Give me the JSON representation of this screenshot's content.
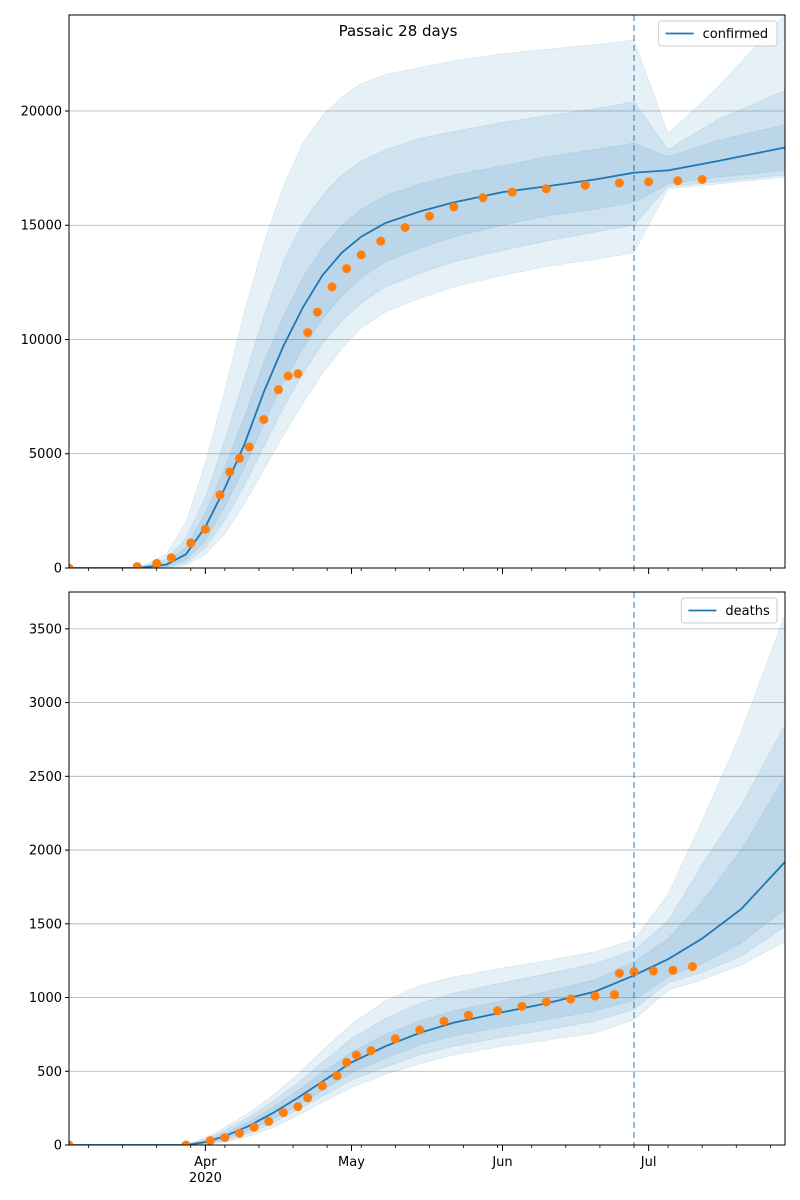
{
  "figure": {
    "title": "Passaic 28 days"
  },
  "colors": {
    "model": "#1f77b4",
    "observed": "#ff7f0e",
    "grid": "#b0b0b0",
    "band": "#1f77b4",
    "forecast_line": "#1f77b4"
  },
  "x_axis": {
    "range": [
      "2020-03-04",
      "2020-07-29"
    ],
    "major_ticks": [
      {
        "date": "2020-04-01",
        "label": "Apr",
        "sublabel": "2020"
      },
      {
        "date": "2020-05-01",
        "label": "May",
        "sublabel": ""
      },
      {
        "date": "2020-06-01",
        "label": "Jun",
        "sublabel": ""
      },
      {
        "date": "2020-07-01",
        "label": "Jul",
        "sublabel": ""
      }
    ],
    "minor_ticks": [
      "2020-03-08",
      "2020-03-15",
      "2020-03-22",
      "2020-03-29",
      "2020-04-05",
      "2020-04-12",
      "2020-04-19",
      "2020-04-26",
      "2020-05-03",
      "2020-05-10",
      "2020-05-17",
      "2020-05-24",
      "2020-05-31",
      "2020-06-07",
      "2020-06-14",
      "2020-06-21",
      "2020-06-28",
      "2020-07-05",
      "2020-07-12",
      "2020-07-19",
      "2020-07-26"
    ],
    "forecast_start": "2020-06-28"
  },
  "chart_data": [
    {
      "type": "line",
      "title": "Passaic 28 days",
      "legend": {
        "entries": [
          "confirmed"
        ],
        "placement": "top-right"
      },
      "grid": "y",
      "ylim": [
        0,
        24200
      ],
      "yticks": [
        0,
        5000,
        10000,
        15000,
        20000
      ],
      "series": [
        {
          "name": "confirmed",
          "kind": "model",
          "x": [
            "2020-03-04",
            "2020-03-18",
            "2020-03-24",
            "2020-03-28",
            "2020-04-01",
            "2020-04-05",
            "2020-04-09",
            "2020-04-13",
            "2020-04-17",
            "2020-04-21",
            "2020-04-25",
            "2020-04-29",
            "2020-05-03",
            "2020-05-08",
            "2020-05-15",
            "2020-05-22",
            "2020-06-01",
            "2020-06-10",
            "2020-06-20",
            "2020-06-28",
            "2020-07-05",
            "2020-07-15",
            "2020-07-29"
          ],
          "y": [
            0,
            0,
            150,
            600,
            1800,
            3500,
            5400,
            7700,
            9700,
            11400,
            12800,
            13800,
            14500,
            15100,
            15600,
            16000,
            16450,
            16700,
            17000,
            17300,
            17400,
            17800,
            18400
          ]
        },
        {
          "name": "",
          "kind": "observed",
          "x": [
            "2020-03-04",
            "2020-03-18",
            "2020-03-22",
            "2020-03-25",
            "2020-03-29",
            "2020-04-01",
            "2020-04-04",
            "2020-04-06",
            "2020-04-08",
            "2020-04-10",
            "2020-04-13",
            "2020-04-16",
            "2020-04-18",
            "2020-04-20",
            "2020-04-22",
            "2020-04-24",
            "2020-04-27",
            "2020-04-30",
            "2020-05-03",
            "2020-05-07",
            "2020-05-12",
            "2020-05-17",
            "2020-05-22",
            "2020-05-28",
            "2020-06-03",
            "2020-06-10",
            "2020-06-18",
            "2020-06-25",
            "2020-07-01",
            "2020-07-07",
            "2020-07-12"
          ],
          "y": [
            0,
            60,
            200,
            450,
            1100,
            1700,
            3200,
            4200,
            4800,
            5300,
            6500,
            7800,
            8400,
            8500,
            10300,
            11200,
            12300,
            13100,
            13700,
            14300,
            14900,
            15400,
            15800,
            16200,
            16450,
            16600,
            16750,
            16850,
            16900,
            16950,
            17000
          ]
        }
      ],
      "uncertainty_bands": [
        {
          "level": "inner",
          "lower": [
            0,
            0,
            60,
            350,
            1200,
            2700,
            4400,
            6300,
            8100,
            9600,
            10900,
            11900,
            12700,
            13400,
            14000,
            14500,
            15000,
            15400,
            15700,
            16000,
            16800,
            17100,
            17400
          ],
          "upper": [
            0,
            0,
            260,
            900,
            2400,
            4400,
            6600,
            9000,
            11000,
            12700,
            14000,
            15000,
            15700,
            16300,
            16800,
            17200,
            17600,
            18000,
            18300,
            18600,
            18000,
            18700,
            19400
          ]
        },
        {
          "level": "middle",
          "lower": [
            0,
            0,
            30,
            220,
            900,
            2100,
            3600,
            5300,
            7000,
            8500,
            9800,
            10800,
            11600,
            12300,
            12900,
            13400,
            13900,
            14300,
            14700,
            15000,
            16700,
            16900,
            17200
          ],
          "upper": [
            0,
            0,
            400,
            1300,
            3100,
            5600,
            8300,
            11000,
            13400,
            15100,
            16300,
            17200,
            17800,
            18300,
            18800,
            19100,
            19500,
            19800,
            20100,
            20400,
            18300,
            19600,
            20900
          ]
        },
        {
          "level": "outer",
          "lower": [
            0,
            0,
            10,
            120,
            600,
            1500,
            2800,
            4300,
            5800,
            7200,
            8500,
            9600,
            10500,
            11200,
            11800,
            12300,
            12800,
            13200,
            13500,
            13800,
            16600,
            16800,
            17100
          ],
          "upper": [
            0,
            0,
            600,
            2000,
            4600,
            7800,
            11200,
            14200,
            16700,
            18600,
            19800,
            20600,
            21200,
            21600,
            21900,
            22200,
            22500,
            22700,
            22900,
            23100,
            19000,
            21000,
            24200
          ]
        }
      ]
    },
    {
      "type": "line",
      "title": "",
      "legend": {
        "entries": [
          "deaths"
        ],
        "placement": "top-right"
      },
      "grid": "y",
      "ylim": [
        0,
        3750
      ],
      "yticks": [
        0,
        500,
        1000,
        1500,
        2000,
        2500,
        3000,
        3500
      ],
      "series": [
        {
          "name": "deaths",
          "kind": "model",
          "x": [
            "2020-03-04",
            "2020-03-28",
            "2020-04-01",
            "2020-04-05",
            "2020-04-10",
            "2020-04-15",
            "2020-04-20",
            "2020-04-25",
            "2020-05-01",
            "2020-05-08",
            "2020-05-15",
            "2020-05-22",
            "2020-06-01",
            "2020-06-10",
            "2020-06-20",
            "2020-06-28",
            "2020-07-05",
            "2020-07-12",
            "2020-07-20",
            "2020-07-29"
          ],
          "y": [
            0,
            0,
            20,
            60,
            130,
            220,
            320,
            430,
            560,
            670,
            760,
            830,
            900,
            960,
            1040,
            1150,
            1260,
            1400,
            1600,
            1920
          ]
        },
        {
          "name": "",
          "kind": "observed",
          "x": [
            "2020-03-04",
            "2020-03-28",
            "2020-04-02",
            "2020-04-05",
            "2020-04-08",
            "2020-04-11",
            "2020-04-14",
            "2020-04-17",
            "2020-04-20",
            "2020-04-22",
            "2020-04-25",
            "2020-04-28",
            "2020-04-30",
            "2020-05-02",
            "2020-05-05",
            "2020-05-10",
            "2020-05-15",
            "2020-05-20",
            "2020-05-25",
            "2020-05-31",
            "2020-06-05",
            "2020-06-10",
            "2020-06-15",
            "2020-06-20",
            "2020-06-24",
            "2020-06-25",
            "2020-06-28",
            "2020-07-02",
            "2020-07-06",
            "2020-07-10"
          ],
          "y": [
            0,
            0,
            30,
            50,
            80,
            120,
            160,
            220,
            260,
            320,
            400,
            470,
            560,
            610,
            640,
            720,
            780,
            840,
            880,
            910,
            940,
            970,
            990,
            1010,
            1020,
            1165,
            1175,
            1180,
            1185,
            1210
          ]
        }
      ],
      "uncertainty_bands": [
        {
          "level": "inner",
          "lower": [
            0,
            0,
            10,
            40,
            100,
            180,
            270,
            370,
            490,
            590,
            680,
            740,
            800,
            850,
            910,
            980,
            1140,
            1230,
            1370,
            1600
          ],
          "upper": [
            0,
            0,
            30,
            80,
            160,
            260,
            370,
            490,
            630,
            750,
            840,
            910,
            980,
            1040,
            1120,
            1240,
            1400,
            1650,
            2000,
            2500
          ]
        },
        {
          "level": "middle",
          "lower": [
            0,
            0,
            5,
            30,
            80,
            150,
            240,
            330,
            440,
            530,
            610,
            670,
            730,
            780,
            840,
            920,
            1100,
            1170,
            1280,
            1480
          ],
          "upper": [
            0,
            0,
            40,
            100,
            190,
            300,
            420,
            560,
            720,
            860,
            960,
            1030,
            1100,
            1160,
            1230,
            1320,
            1520,
            1900,
            2300,
            2850
          ]
        },
        {
          "level": "outer",
          "lower": [
            0,
            0,
            2,
            20,
            60,
            120,
            200,
            290,
            390,
            480,
            550,
            610,
            670,
            710,
            760,
            850,
            1050,
            1120,
            1220,
            1380
          ],
          "upper": [
            0,
            0,
            50,
            120,
            220,
            340,
            480,
            640,
            820,
            980,
            1080,
            1140,
            1200,
            1250,
            1310,
            1390,
            1700,
            2200,
            2800,
            3600
          ]
        }
      ]
    }
  ]
}
